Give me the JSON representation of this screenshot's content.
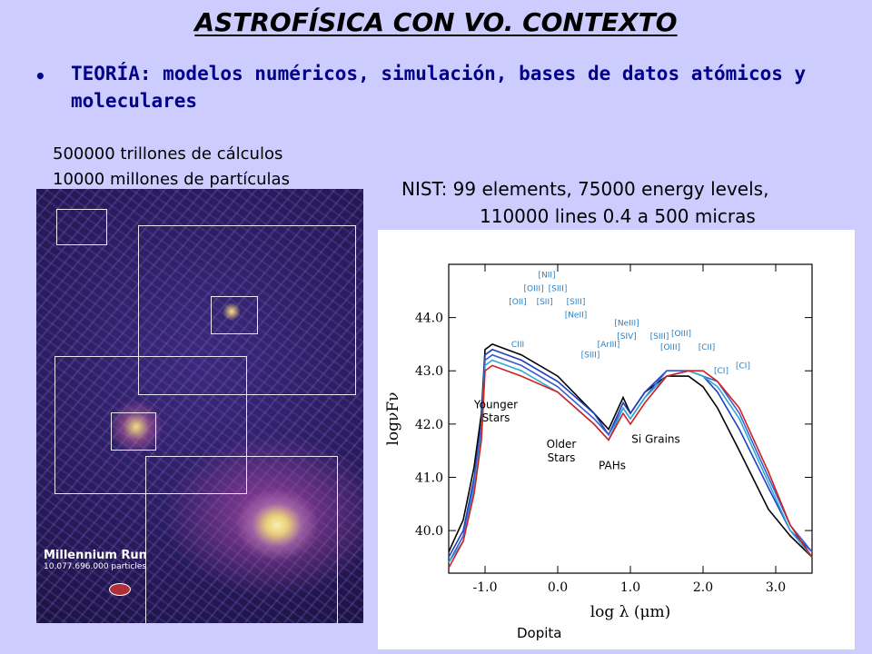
{
  "slide": {
    "title": "ASTROFÍSICA CON VO. CONTEXTO",
    "bullet": "TEORÍA: modelos numéricos, simulación, bases de datos atómicos y moleculares",
    "left_caption_1": "500000 trillones de cálculos",
    "left_caption_2": "10000 millones de partículas",
    "right_caption_1": "NIST: 99 elements, 75000 energy levels,",
    "right_caption_2": "110000 lines 0.4 a 500 micras",
    "footer": "Dopita"
  },
  "simulation": {
    "title": "Millennium Run",
    "subtitle": "10.077.696.000 particles"
  },
  "chart_data": {
    "type": "line",
    "xlabel": "log λ (μm)",
    "ylabel": "logνFν",
    "xlim": [
      -1.5,
      3.5
    ],
    "ylim": [
      39.2,
      45.0
    ],
    "x_ticks": [
      "-1.0",
      "0.0",
      "1.0",
      "2.0",
      "3.0"
    ],
    "y_ticks": [
      "40.0",
      "41.0",
      "42.0",
      "43.0",
      "44.0"
    ],
    "series": [
      {
        "color": "#000000",
        "x": [
          -1.5,
          -1.3,
          -1.15,
          -1.05,
          -1.0,
          -0.9,
          -0.5,
          0.0,
          0.5,
          0.7,
          0.9,
          1.0,
          1.2,
          1.5,
          1.8,
          2.0,
          2.2,
          2.5,
          2.9,
          3.2,
          3.5
        ],
        "y": [
          39.6,
          40.2,
          41.2,
          42.2,
          43.4,
          43.5,
          43.3,
          42.9,
          42.2,
          41.9,
          42.5,
          42.2,
          42.6,
          42.9,
          42.9,
          42.7,
          42.3,
          41.5,
          40.4,
          39.9,
          39.5
        ]
      },
      {
        "color": "#1f3fbf",
        "x": [
          -1.5,
          -1.3,
          -1.15,
          -1.05,
          -1.0,
          -0.9,
          -0.5,
          0.0,
          0.5,
          0.7,
          0.9,
          1.0,
          1.2,
          1.5,
          1.8,
          2.0,
          2.2,
          2.5,
          2.9,
          3.2,
          3.5
        ],
        "y": [
          39.5,
          40.0,
          41.0,
          42.0,
          43.3,
          43.4,
          43.2,
          42.8,
          42.2,
          41.8,
          42.4,
          42.2,
          42.6,
          43.0,
          43.0,
          42.9,
          42.6,
          41.9,
          40.8,
          40.0,
          39.6
        ]
      },
      {
        "color": "#3a5fd0",
        "x": [
          -1.5,
          -1.3,
          -1.15,
          -1.05,
          -1.0,
          -0.9,
          -0.5,
          0.0,
          0.5,
          0.7,
          0.9,
          1.0,
          1.2,
          1.5,
          1.8,
          2.0,
          2.2,
          2.5,
          2.9,
          3.2,
          3.5
        ],
        "y": [
          39.4,
          39.9,
          40.9,
          41.9,
          43.2,
          43.3,
          43.1,
          42.7,
          42.1,
          41.8,
          42.3,
          42.1,
          42.5,
          43.0,
          43.0,
          42.9,
          42.8,
          42.2,
          41.0,
          40.1,
          39.6
        ]
      },
      {
        "color": "#2fa8d8",
        "x": [
          -1.5,
          -1.3,
          -1.15,
          -1.05,
          -1.0,
          -0.9,
          -0.5,
          0.0,
          0.5,
          0.7,
          0.9,
          1.0,
          1.2,
          1.5,
          1.8,
          2.0,
          2.2,
          2.5,
          2.9,
          3.2,
          3.5
        ],
        "y": [
          39.4,
          39.8,
          40.8,
          41.8,
          43.1,
          43.2,
          43.0,
          42.6,
          42.0,
          41.7,
          42.3,
          42.1,
          42.5,
          42.9,
          43.0,
          42.9,
          42.7,
          42.1,
          40.9,
          40.0,
          39.5
        ]
      },
      {
        "color": "#d02020",
        "x": [
          -1.5,
          -1.3,
          -1.15,
          -1.05,
          -1.0,
          -0.9,
          -0.5,
          0.0,
          0.5,
          0.7,
          0.9,
          1.0,
          1.2,
          1.5,
          1.8,
          2.0,
          2.2,
          2.5,
          2.9,
          3.2,
          3.5
        ],
        "y": [
          39.3,
          39.8,
          40.7,
          41.7,
          43.0,
          43.1,
          42.9,
          42.6,
          42.0,
          41.7,
          42.2,
          42.0,
          42.4,
          42.9,
          43.0,
          43.0,
          42.8,
          42.3,
          41.1,
          40.1,
          39.5
        ]
      }
    ],
    "annotations": [
      {
        "text": "Younger",
        "x": -0.85,
        "y": 42.3
      },
      {
        "text": "Stars",
        "x": -0.85,
        "y": 42.05
      },
      {
        "text": "Older",
        "x": 0.05,
        "y": 41.55
      },
      {
        "text": "Stars",
        "x": 0.05,
        "y": 41.3
      },
      {
        "text": "PAHs",
        "x": 0.75,
        "y": 41.15
      },
      {
        "text": "Si Grains",
        "x": 1.35,
        "y": 41.65
      }
    ],
    "line_labels": [
      {
        "text": "[NII]",
        "x": -0.15,
        "y": 44.75
      },
      {
        "text": "[OIII]",
        "x": -0.33,
        "y": 44.5
      },
      {
        "text": "[SIII]",
        "x": 0.0,
        "y": 44.5
      },
      {
        "text": "[OII]",
        "x": -0.55,
        "y": 44.25
      },
      {
        "text": "[SII]",
        "x": -0.18,
        "y": 44.25
      },
      {
        "text": "[SIII]",
        "x": 0.25,
        "y": 44.25
      },
      {
        "text": "[NeII]",
        "x": 0.25,
        "y": 44.0
      },
      {
        "text": "CIII",
        "x": -0.55,
        "y": 43.45
      },
      {
        "text": "[SIII]",
        "x": 0.45,
        "y": 43.25
      },
      {
        "text": "[NeIII]",
        "x": 0.95,
        "y": 43.85
      },
      {
        "text": "[SIV]",
        "x": 0.95,
        "y": 43.6
      },
      {
        "text": "[ArIII]",
        "x": 0.7,
        "y": 43.45
      },
      {
        "text": "[SIII]",
        "x": 1.4,
        "y": 43.6
      },
      {
        "text": "[OIII]",
        "x": 1.7,
        "y": 43.65
      },
      {
        "text": "[OIII]",
        "x": 1.55,
        "y": 43.4
      },
      {
        "text": "[CII]",
        "x": 2.05,
        "y": 43.4
      },
      {
        "text": "[CI]",
        "x": 2.25,
        "y": 42.95
      },
      {
        "text": "[CI]",
        "x": 2.55,
        "y": 43.05
      }
    ]
  }
}
